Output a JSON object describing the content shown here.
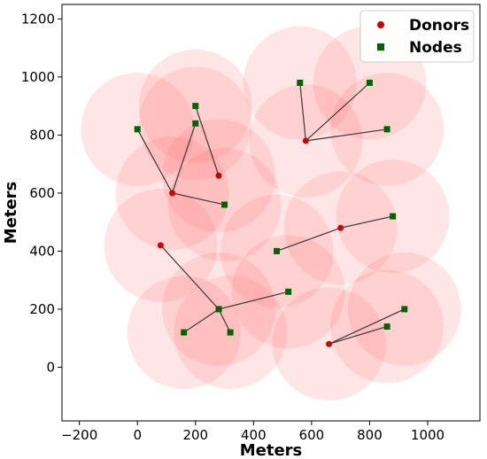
{
  "chart_data": {
    "type": "scatter",
    "xlabel": "Meters",
    "ylabel": "Meters",
    "xlim": [
      -260,
      1180
    ],
    "ylim": [
      -185,
      1250
    ],
    "xticks": [
      -200,
      0,
      200,
      400,
      600,
      800,
      1000
    ],
    "yticks": [
      0,
      200,
      400,
      600,
      800,
      1000,
      1200
    ],
    "coverage_radius": 195,
    "legend": {
      "position": "top-right",
      "entries": [
        "Donors",
        "Nodes"
      ]
    },
    "colors": {
      "donor": "#d00000",
      "node": "#006400",
      "link": "#444444",
      "coverage": "#ff6464"
    },
    "series": [
      {
        "name": "Donors",
        "marker": "circle",
        "points": [
          [
            120,
            600
          ],
          [
            280,
            660
          ],
          [
            580,
            780
          ],
          [
            80,
            420
          ],
          [
            700,
            480
          ],
          [
            660,
            80
          ]
        ]
      },
      {
        "name": "Nodes",
        "marker": "square",
        "points": [
          [
            0,
            820
          ],
          [
            200,
            900
          ],
          [
            200,
            840
          ],
          [
            300,
            560
          ],
          [
            560,
            980
          ],
          [
            800,
            980
          ],
          [
            860,
            820
          ],
          [
            480,
            400
          ],
          [
            880,
            520
          ],
          [
            280,
            200
          ],
          [
            520,
            260
          ],
          [
            160,
            120
          ],
          [
            320,
            120
          ],
          [
            860,
            140
          ],
          [
            920,
            200
          ]
        ]
      }
    ],
    "links": [
      [
        [
          120,
          600
        ],
        [
          0,
          820
        ]
      ],
      [
        [
          120,
          600
        ],
        [
          200,
          840
        ]
      ],
      [
        [
          120,
          600
        ],
        [
          300,
          560
        ]
      ],
      [
        [
          280,
          660
        ],
        [
          200,
          900
        ]
      ],
      [
        [
          580,
          780
        ],
        [
          560,
          980
        ]
      ],
      [
        [
          580,
          780
        ],
        [
          800,
          980
        ]
      ],
      [
        [
          580,
          780
        ],
        [
          860,
          820
        ]
      ],
      [
        [
          80,
          420
        ],
        [
          280,
          200
        ]
      ],
      [
        [
          280,
          200
        ],
        [
          520,
          260
        ]
      ],
      [
        [
          280,
          200
        ],
        [
          160,
          120
        ]
      ],
      [
        [
          280,
          200
        ],
        [
          320,
          120
        ]
      ],
      [
        [
          700,
          480
        ],
        [
          480,
          400
        ]
      ],
      [
        [
          700,
          480
        ],
        [
          880,
          520
        ]
      ],
      [
        [
          660,
          80
        ],
        [
          860,
          140
        ]
      ],
      [
        [
          660,
          80
        ],
        [
          920,
          200
        ]
      ]
    ]
  }
}
